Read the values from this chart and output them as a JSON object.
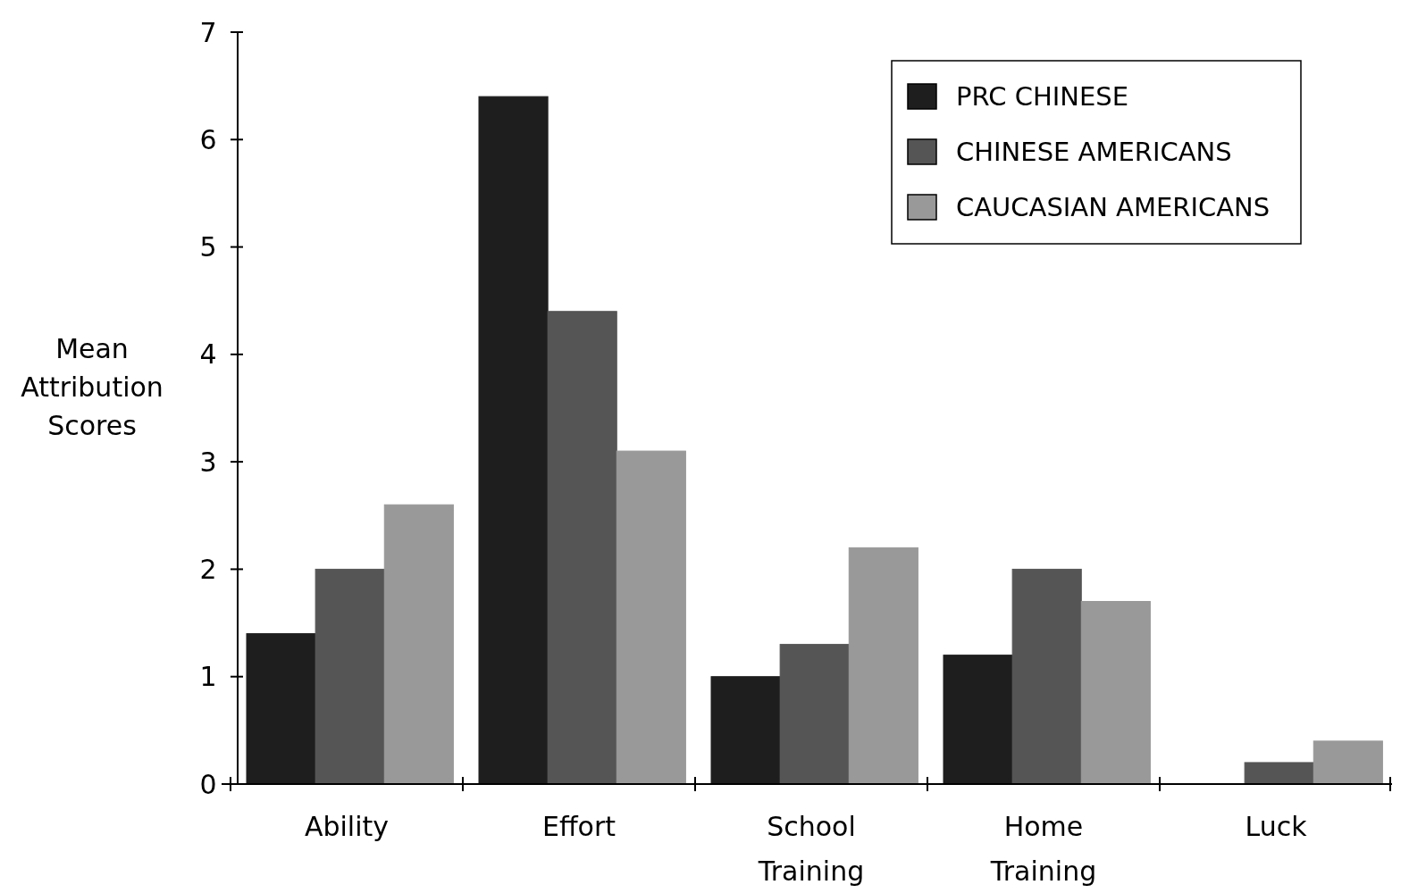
{
  "chart_data": {
    "type": "bar",
    "ylabel": "Mean Attribution Scores",
    "categories": [
      "Ability",
      "Effort",
      "School Training",
      "Home Training",
      "Luck"
    ],
    "series": [
      {
        "name": "PRC CHINESE",
        "color": "#1e1e1e",
        "values": [
          1.4,
          6.4,
          1.0,
          1.2,
          0
        ]
      },
      {
        "name": "CHINESE AMERICANS",
        "color": "#555555",
        "values": [
          2.0,
          4.4,
          1.3,
          2.0,
          0.2
        ]
      },
      {
        "name": "CAUCASIAN AMERICANS",
        "color": "#999999",
        "values": [
          2.6,
          3.1,
          2.2,
          1.7,
          0.4
        ]
      }
    ],
    "ylim": [
      0,
      7
    ],
    "yticks": [
      0,
      1,
      2,
      3,
      4,
      5,
      6,
      7
    ],
    "grid": false,
    "legend": "top right"
  }
}
